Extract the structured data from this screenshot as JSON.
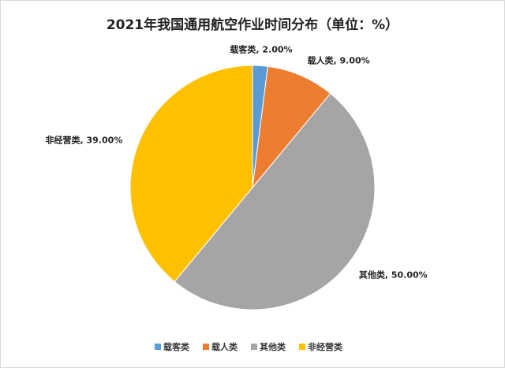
{
  "chart_data": {
    "type": "pie",
    "title": "2021年我国通用航空作业时间分布（单位：%）",
    "categories": [
      "载客类",
      "载人类",
      "其他类",
      "非经营类"
    ],
    "values": [
      2,
      9,
      50,
      39
    ],
    "value_labels": [
      "载客类, 2.00%",
      "载人类, 9.00%",
      "其他类, 50.00%",
      "非经营类, 39.00%"
    ],
    "colors": [
      "#5b9bd5",
      "#ed7d31",
      "#a5a5a5",
      "#ffc000"
    ],
    "legend": "bottom"
  }
}
